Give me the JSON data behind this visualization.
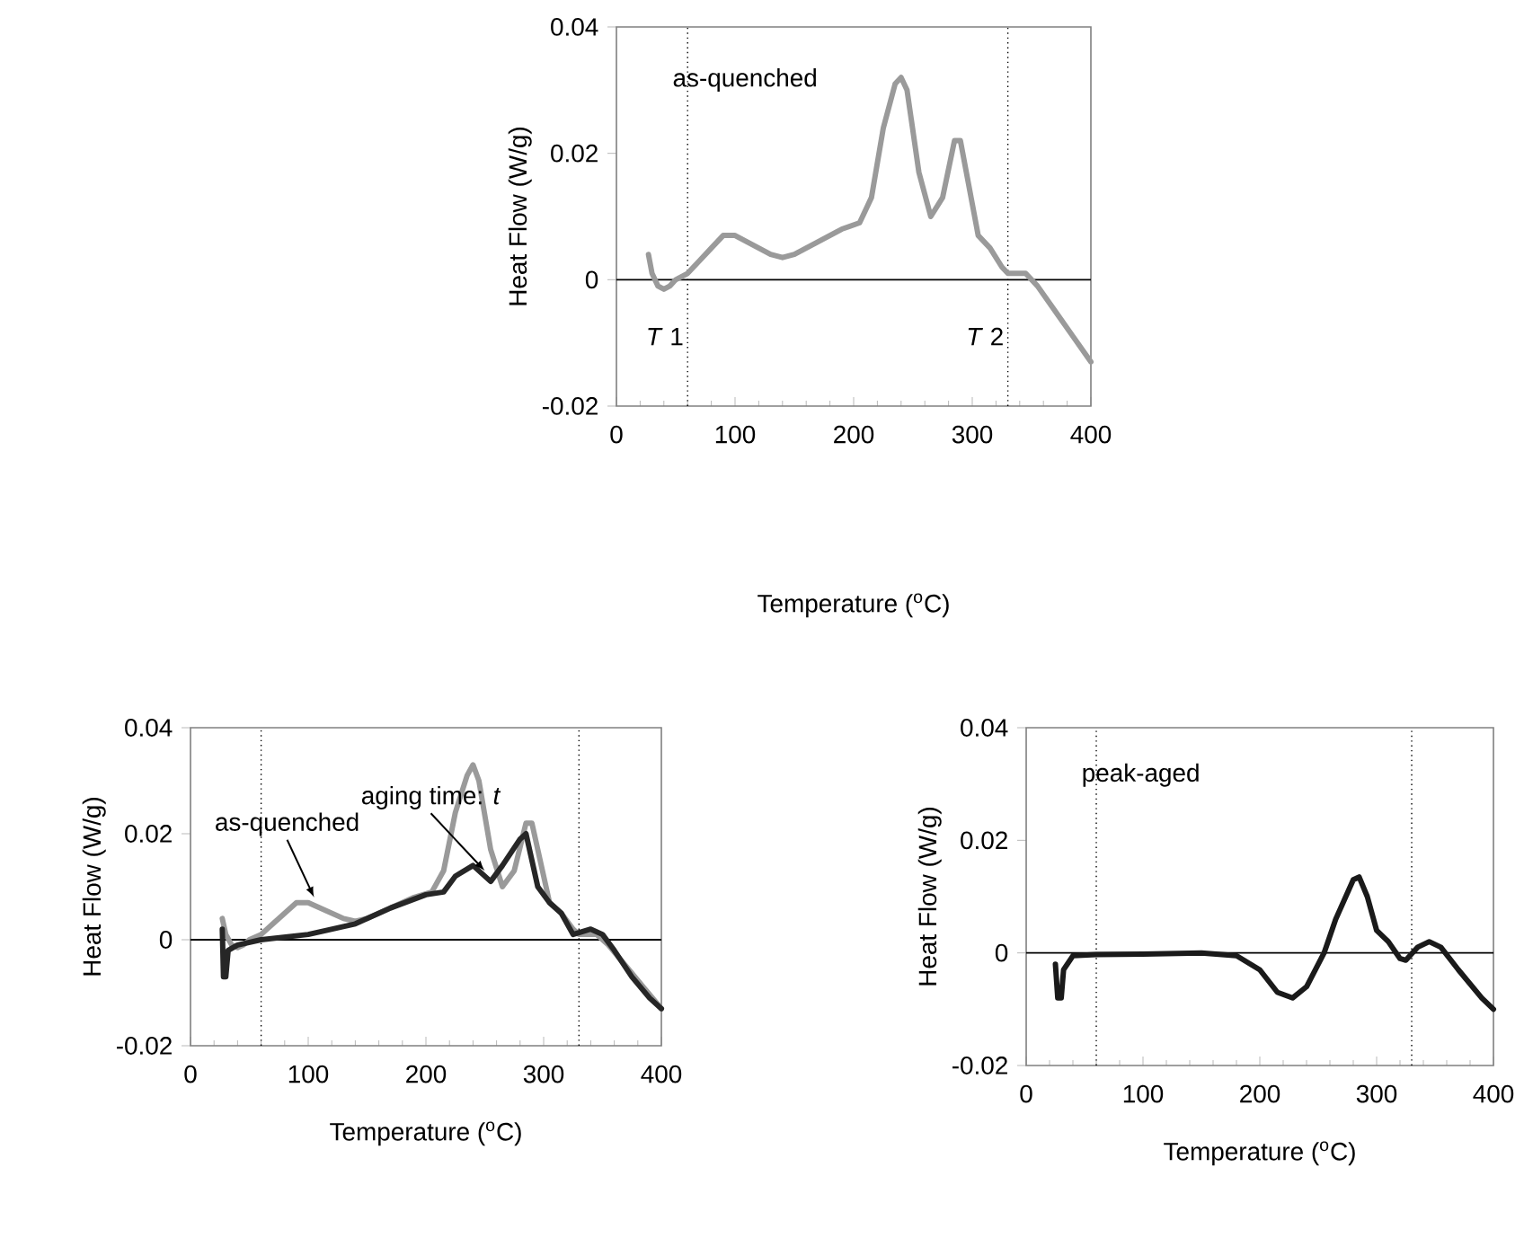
{
  "chart_data": [
    {
      "type": "line",
      "xlabel": "Temperature ($^{o}$C)",
      "ylabel": "Heat Flow (W/g)",
      "xlim": [
        0,
        400
      ],
      "xticks": [
        0,
        100,
        200,
        300,
        400
      ],
      "ylim": [
        -0.02,
        0.04
      ],
      "yticks": [
        -0.02,
        0,
        0.02,
        0.04
      ],
      "annotations": [
        "as-quenched"
      ],
      "ref_lines": [
        {
          "axis": "y",
          "value": 0,
          "line_style": "solid",
          "color": "#000000"
        },
        {
          "axis": "x",
          "value": 60,
          "label": "*T* 1",
          "line_style": "dotted",
          "color": "#000000"
        },
        {
          "axis": "x",
          "value": 330,
          "label": "*T* 2",
          "line_style": "dotted",
          "color": "#000000"
        }
      ],
      "series": [
        {
          "color": "#9a9a9a",
          "x": [
            27,
            28,
            30,
            35,
            40,
            45,
            50,
            60,
            70,
            80,
            90,
            100,
            110,
            120,
            130,
            140,
            150,
            170,
            190,
            205,
            215,
            225,
            235,
            240,
            245,
            255,
            265,
            275,
            285,
            290,
            295,
            305,
            315,
            325,
            330,
            345,
            355,
            370,
            385,
            400
          ],
          "values": [
            0.004,
            0.003,
            0.001,
            -0.001,
            -0.0015,
            -0.001,
            0,
            0.001,
            0.003,
            0.005,
            0.007,
            0.007,
            0.006,
            0.005,
            0.004,
            0.0035,
            0.004,
            0.006,
            0.008,
            0.009,
            0.013,
            0.024,
            0.031,
            0.032,
            0.03,
            0.017,
            0.01,
            0.013,
            0.022,
            0.022,
            0.017,
            0.007,
            0.005,
            0.002,
            0.001,
            0.001,
            -0.001,
            -0.005,
            -0.009,
            -0.013
          ]
        }
      ]
    },
    {
      "type": "line",
      "xlabel": "Temperature ($^{o}$C)",
      "ylabel": "Heat Flow (W/g)",
      "xlim": [
        0,
        400
      ],
      "xticks": [
        0,
        100,
        200,
        300,
        400
      ],
      "ylim": [
        -0.02,
        0.04
      ],
      "yticks": [
        -0.02,
        0,
        0.02,
        0.04
      ],
      "annotations": [
        {
          "text": "aging time: *t*",
          "x": 250,
          "y": 0.013
        },
        {
          "text": "as-quenched",
          "x": 105,
          "y": 0.008
        }
      ],
      "ref_lines": [
        {
          "axis": "y",
          "value": 0,
          "line_style": "solid",
          "color": "#000000"
        },
        {
          "axis": "x",
          "value": 60,
          "line_style": "dotted",
          "color": "#000000"
        },
        {
          "axis": "x",
          "value": 330,
          "line_style": "dotted",
          "color": "#000000"
        }
      ],
      "series": [
        {
          "color": "#9a9a9a",
          "x": [
            27,
            28,
            30,
            35,
            40,
            45,
            50,
            60,
            70,
            80,
            90,
            100,
            110,
            120,
            130,
            140,
            150,
            170,
            190,
            205,
            215,
            225,
            235,
            240,
            245,
            255,
            265,
            275,
            285,
            290,
            295,
            305,
            315,
            325,
            330,
            345,
            355,
            370,
            385,
            400
          ],
          "values": [
            0.004,
            0.003,
            0.001,
            -0.001,
            -0.0015,
            -0.001,
            0,
            0.001,
            0.003,
            0.005,
            0.007,
            0.007,
            0.006,
            0.005,
            0.004,
            0.0035,
            0.004,
            0.006,
            0.008,
            0.009,
            0.013,
            0.024,
            0.031,
            0.033,
            0.03,
            0.017,
            0.01,
            0.013,
            0.022,
            0.022,
            0.017,
            0.007,
            0.005,
            0.002,
            0.001,
            0.001,
            -0.001,
            -0.005,
            -0.009,
            -0.013
          ]
        },
        {
          "color": "#262626",
          "x": [
            27,
            28,
            30,
            32,
            40,
            60,
            100,
            140,
            170,
            200,
            215,
            225,
            240,
            255,
            265,
            280,
            285,
            290,
            295,
            305,
            315,
            325,
            340,
            350,
            360,
            375,
            390,
            400
          ],
          "values": [
            0.002,
            -0.007,
            -0.007,
            -0.002,
            -0.001,
            0,
            0.001,
            0.003,
            0.006,
            0.0085,
            0.009,
            0.012,
            0.014,
            0.011,
            0.014,
            0.019,
            0.02,
            0.015,
            0.01,
            0.007,
            0.005,
            0.001,
            0.002,
            0.001,
            -0.002,
            -0.007,
            -0.011,
            -0.013
          ]
        }
      ]
    },
    {
      "type": "line",
      "xlabel": "Temperature ($^{o}$C)",
      "ylabel": "Heat Flow (W/g)",
      "xlim": [
        0,
        400
      ],
      "xticks": [
        0,
        100,
        200,
        300,
        400
      ],
      "ylim": [
        -0.02,
        0.04
      ],
      "yticks": [
        -0.02,
        0,
        0.02,
        0.04
      ],
      "annotations": [
        "peak-aged"
      ],
      "ref_lines": [
        {
          "axis": "y",
          "value": 0,
          "line_style": "solid",
          "color": "#000000"
        },
        {
          "axis": "x",
          "value": 60,
          "line_style": "dotted",
          "color": "#000000"
        },
        {
          "axis": "x",
          "value": 330,
          "line_style": "dotted",
          "color": "#000000"
        }
      ],
      "series": [
        {
          "color": "#1a1a1a",
          "x": [
            25,
            27,
            30,
            32,
            40,
            60,
            100,
            150,
            180,
            200,
            215,
            228,
            240,
            255,
            265,
            280,
            285,
            292,
            300,
            310,
            320,
            325,
            335,
            345,
            355,
            370,
            390,
            400
          ],
          "values": [
            -0.002,
            -0.008,
            -0.008,
            -0.003,
            -0.0005,
            -0.0003,
            -0.0002,
            0,
            -0.0005,
            -0.003,
            -0.007,
            -0.008,
            -0.006,
            0,
            0.006,
            0.013,
            0.0135,
            0.01,
            0.004,
            0.002,
            -0.001,
            -0.0013,
            0.001,
            0.002,
            0.001,
            -0.003,
            -0.008,
            -0.01
          ]
        }
      ]
    }
  ]
}
